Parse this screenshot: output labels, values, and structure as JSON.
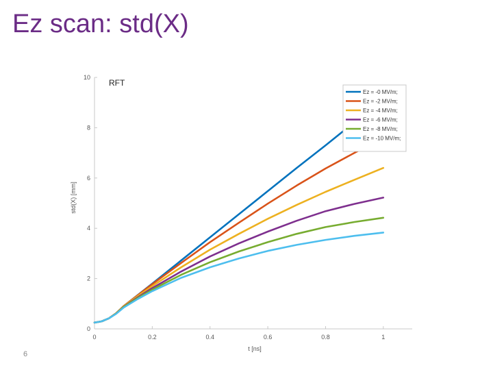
{
  "slide": {
    "title": "Ez scan: std(X)",
    "page_number": "6"
  },
  "chart_data": {
    "type": "line",
    "annotation": "RFT",
    "xlabel": "t [ns]",
    "ylabel": "std(X) [mm]",
    "xlim": [
      0,
      1.1
    ],
    "ylim": [
      0,
      10
    ],
    "xticks": [
      0,
      0.2,
      0.4,
      0.6,
      0.8,
      1
    ],
    "xtick_labels": [
      "0",
      "0.2",
      "0.4",
      "0.6",
      "0.8",
      "1"
    ],
    "yticks": [
      0,
      2,
      4,
      6,
      8,
      10
    ],
    "ytick_labels": [
      "0",
      "2",
      "4",
      "6",
      "8",
      "10"
    ],
    "grid": false,
    "legend_position": "top-right",
    "x": [
      0,
      0.025,
      0.05,
      0.075,
      0.1,
      0.15,
      0.2,
      0.3,
      0.4,
      0.5,
      0.6,
      0.7,
      0.8,
      0.9,
      1.0
    ],
    "series": [
      {
        "name": "Ez = -0 MV/m;",
        "color": "#0072bd",
        "values": [
          0.25,
          0.3,
          0.42,
          0.62,
          0.9,
          1.35,
          1.8,
          2.72,
          3.64,
          4.56,
          5.48,
          6.4,
          7.3,
          8.22,
          9.15
        ]
      },
      {
        "name": "Ez = -2 MV/m;",
        "color": "#d95319",
        "values": [
          0.25,
          0.3,
          0.42,
          0.62,
          0.9,
          1.34,
          1.78,
          2.62,
          3.45,
          4.22,
          4.98,
          5.7,
          6.38,
          7.0,
          7.6
        ]
      },
      {
        "name": "Ez = -4 MV/m;",
        "color": "#edb120",
        "values": [
          0.25,
          0.3,
          0.42,
          0.62,
          0.89,
          1.31,
          1.7,
          2.45,
          3.15,
          3.78,
          4.38,
          4.93,
          5.45,
          5.93,
          6.4
        ]
      },
      {
        "name": "Ez = -6 MV/m;",
        "color": "#7e2f8e",
        "values": [
          0.25,
          0.3,
          0.42,
          0.61,
          0.87,
          1.26,
          1.62,
          2.28,
          2.88,
          3.4,
          3.87,
          4.3,
          4.68,
          4.97,
          5.22
        ]
      },
      {
        "name": "Ez = -8 MV/m;",
        "color": "#77ac30",
        "values": [
          0.25,
          0.3,
          0.42,
          0.61,
          0.86,
          1.23,
          1.56,
          2.15,
          2.65,
          3.08,
          3.45,
          3.78,
          4.05,
          4.25,
          4.42
        ]
      },
      {
        "name": "Ez = -10 MV/m;",
        "color": "#4dbeee",
        "values": [
          0.25,
          0.3,
          0.42,
          0.6,
          0.84,
          1.19,
          1.5,
          2.03,
          2.45,
          2.8,
          3.1,
          3.34,
          3.54,
          3.7,
          3.83
        ]
      }
    ]
  }
}
